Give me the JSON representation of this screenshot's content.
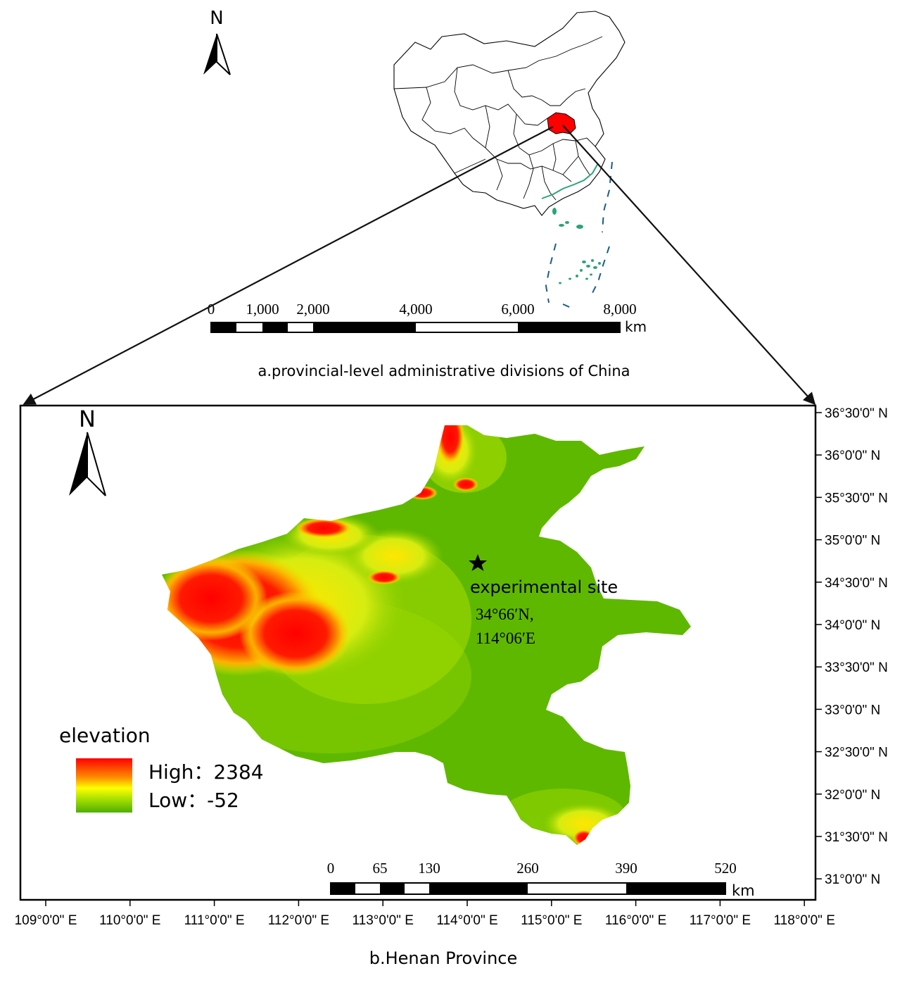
{
  "north_a": "N",
  "north_b": "N",
  "panel_a": {
    "scale_labels": [
      "0",
      "1,000",
      "2,000",
      "4,000",
      "6,000",
      "8,000"
    ],
    "scale_unit": "km",
    "caption": "a.provincial-level administrative divisions of China",
    "highlight_color": "#ff0000"
  },
  "panel_b": {
    "caption": "b.Henan Province",
    "lat_labels": [
      "36°30'0\" N",
      "36°0'0\" N",
      "35°30'0\" N",
      "35°0'0\" N",
      "34°30'0\" N",
      "34°0'0\" N",
      "33°30'0\" N",
      "33°0'0\" N",
      "32°30'0\" N",
      "32°0'0\" N",
      "31°30'0\" N",
      "31°0'0\" N"
    ],
    "lon_labels": [
      "109°0'0\" E",
      "110°0'0\" E",
      "111°0'0\" E",
      "112°0'0\" E",
      "113°0'0\" E",
      "114°0'0\" E",
      "115°0'0\" E",
      "116°0'0\" E",
      "117°0'0\" E",
      "118°0'0\" E"
    ],
    "scale_labels": [
      "0",
      "65",
      "130",
      "260",
      "390",
      "520"
    ],
    "scale_unit": "km",
    "site_label": "experimental site",
    "site_coord_lat": "34°66′N,",
    "site_coord_lon": "114°06′E",
    "legend_title": "elevation",
    "legend_high": "High：2384",
    "legend_low": "Low：-52",
    "colors": {
      "high": "#ff0000",
      "mid": "#ffff00",
      "low": "#5fb800"
    }
  }
}
